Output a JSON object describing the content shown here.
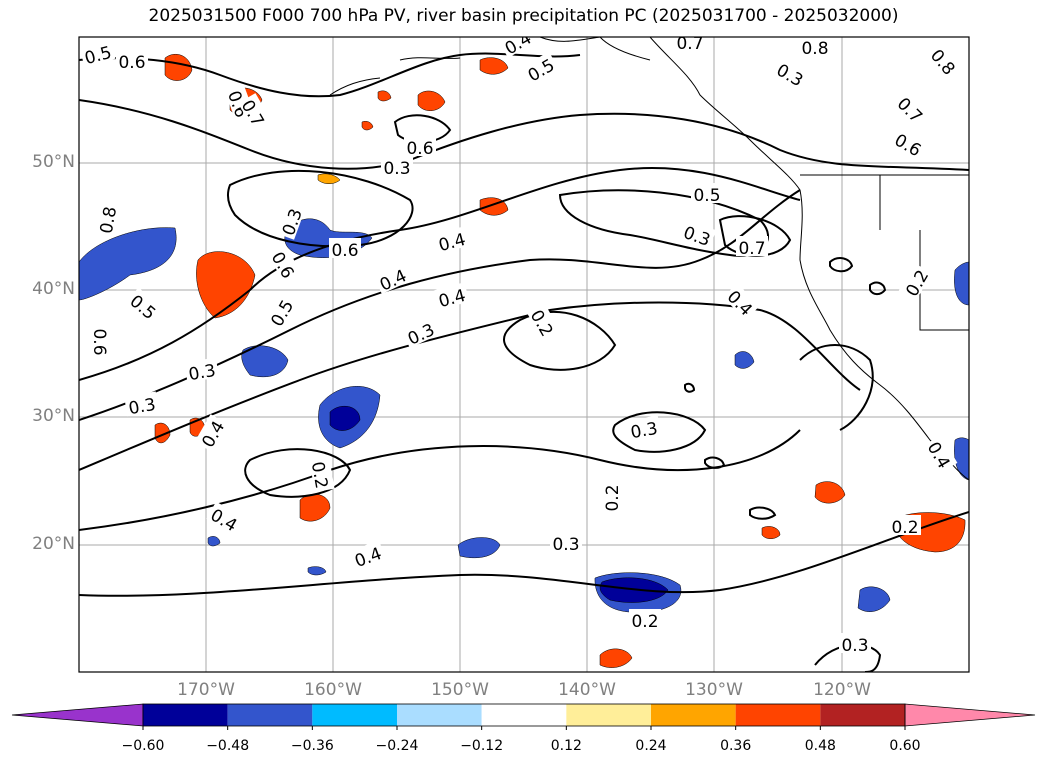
{
  "figure": {
    "title": "2025031500 F000 700 hPa PV, river basin precipitation PC (2025031700 - 2025032000)"
  },
  "map": {
    "lat_range": [
      10,
      60
    ],
    "lon_range": [
      -180,
      -110
    ],
    "lat_labels": [
      "50°N",
      "40°N",
      "30°N",
      "20°N"
    ],
    "lon_labels": [
      "170°W",
      "160°W",
      "150°W",
      "140°W",
      "130°W",
      "120°W"
    ],
    "gridlines": true,
    "contour_field": "700 hPa PV",
    "contour_labels": [
      "0.5",
      "0.6",
      "0.4",
      "0.8",
      "0.7",
      "0.8",
      "0.6",
      "0.5",
      "0.3",
      "0.7",
      "0.6",
      "0.3",
      "0.6",
      "0.7",
      "0.8",
      "0.3",
      "0.6",
      "0.5",
      "0.3",
      "0.7",
      "0.6",
      "0.4",
      "0.2",
      "0.5",
      "0.4",
      "0.4",
      "0.5",
      "0.3",
      "0.4",
      "0.6",
      "0.2",
      "0.3",
      "0.3",
      "0.3",
      "0.4",
      "0.2",
      "0.2",
      "0.4",
      "0.4",
      "0.3",
      "0.2",
      "0.2",
      "0.3",
      "0.4"
    ]
  },
  "colorbar": {
    "colors": [
      "#9933cc",
      "#000099",
      "#3355cc",
      "#00bbff",
      "#aaddff",
      "#ffffff",
      "#ffee99",
      "#ffa500",
      "#ff4400",
      "#b22222",
      "#ff88aa"
    ],
    "tick_labels": [
      "−0.60",
      "−0.48",
      "−0.36",
      "−0.24",
      "−0.12",
      "0.12",
      "0.24",
      "0.36",
      "0.48",
      "0.60"
    ],
    "extend": "both"
  }
}
